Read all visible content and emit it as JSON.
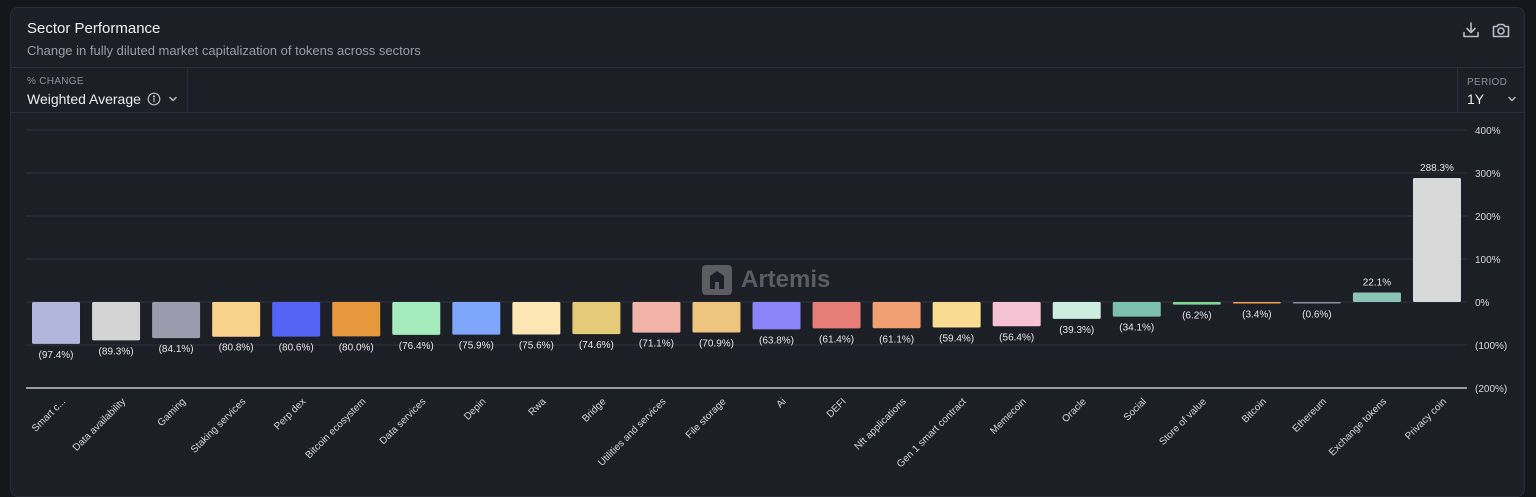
{
  "header": {
    "title": "Sector Performance",
    "subtitle": "Change in fully diluted market capitalization of tokens across sectors"
  },
  "toolbar": {
    "download_icon": "download-icon",
    "camera_icon": "camera-icon"
  },
  "controls": {
    "change_label": "% CHANGE",
    "change_value": "Weighted Average",
    "period_label": "PERIOD",
    "period_value": "1Y"
  },
  "watermark": "Artemis",
  "chart_data": {
    "type": "bar",
    "title": "Sector Performance",
    "ylim": [
      -200,
      400
    ],
    "yticks": [
      400,
      300,
      200,
      100,
      0,
      -100,
      -200
    ],
    "ytick_labels": [
      "400%",
      "300%",
      "200%",
      "100%",
      "0%",
      "(100%)",
      "(200%)"
    ],
    "categories": [
      "Smart c...",
      "Data availability",
      "Gaming",
      "Staking services",
      "Perp dex",
      "Bitcoin ecosystem",
      "Data services",
      "Depin",
      "Rwa",
      "Bridge",
      "Utilities and services",
      "File storage",
      "Ai",
      "DEFI",
      "Nft applications",
      "Gen 1 smart contract",
      "Memecoin",
      "Oracle",
      "Social",
      "Store of value",
      "Bitcoin",
      "Ethereum",
      "Exchange tokens",
      "Privacy coin"
    ],
    "values": [
      -97.4,
      -89.3,
      -84.1,
      -80.8,
      -80.6,
      -80.0,
      -76.4,
      -75.9,
      -75.6,
      -74.6,
      -71.1,
      -70.9,
      -63.8,
      -61.4,
      -61.1,
      -59.4,
      -56.4,
      -39.3,
      -34.1,
      -6.2,
      -3.4,
      -0.6,
      22.1,
      288.3
    ],
    "labels": [
      "(97.4%)",
      "(89.3%)",
      "(84.1%)",
      "(80.8%)",
      "(80.6%)",
      "(80.0%)",
      "(76.4%)",
      "(75.9%)",
      "(75.6%)",
      "(74.6%)",
      "(71.1%)",
      "(70.9%)",
      "(63.8%)",
      "(61.4%)",
      "(61.1%)",
      "(59.4%)",
      "(56.4%)",
      "(39.3%)",
      "(34.1%)",
      "(6.2%)",
      "(3.4%)",
      "(0.6%)",
      "22.1%",
      "288.3%"
    ],
    "colors": [
      "#b3b6dc",
      "#d4d4d4",
      "#9a9cae",
      "#f8d28b",
      "#5464f4",
      "#e8983c",
      "#a4ecbd",
      "#7ea7fb",
      "#fce6b3",
      "#e5cb78",
      "#f2b4a6",
      "#eec57e",
      "#8a84f8",
      "#e47e77",
      "#f0a073",
      "#f9dc92",
      "#f5c3d3",
      "#cdeedf",
      "#7cbfb3",
      "#7fd594",
      "#f0a050",
      "#8a8ea3",
      "#8cc5b8",
      "#d8d8d8"
    ]
  }
}
